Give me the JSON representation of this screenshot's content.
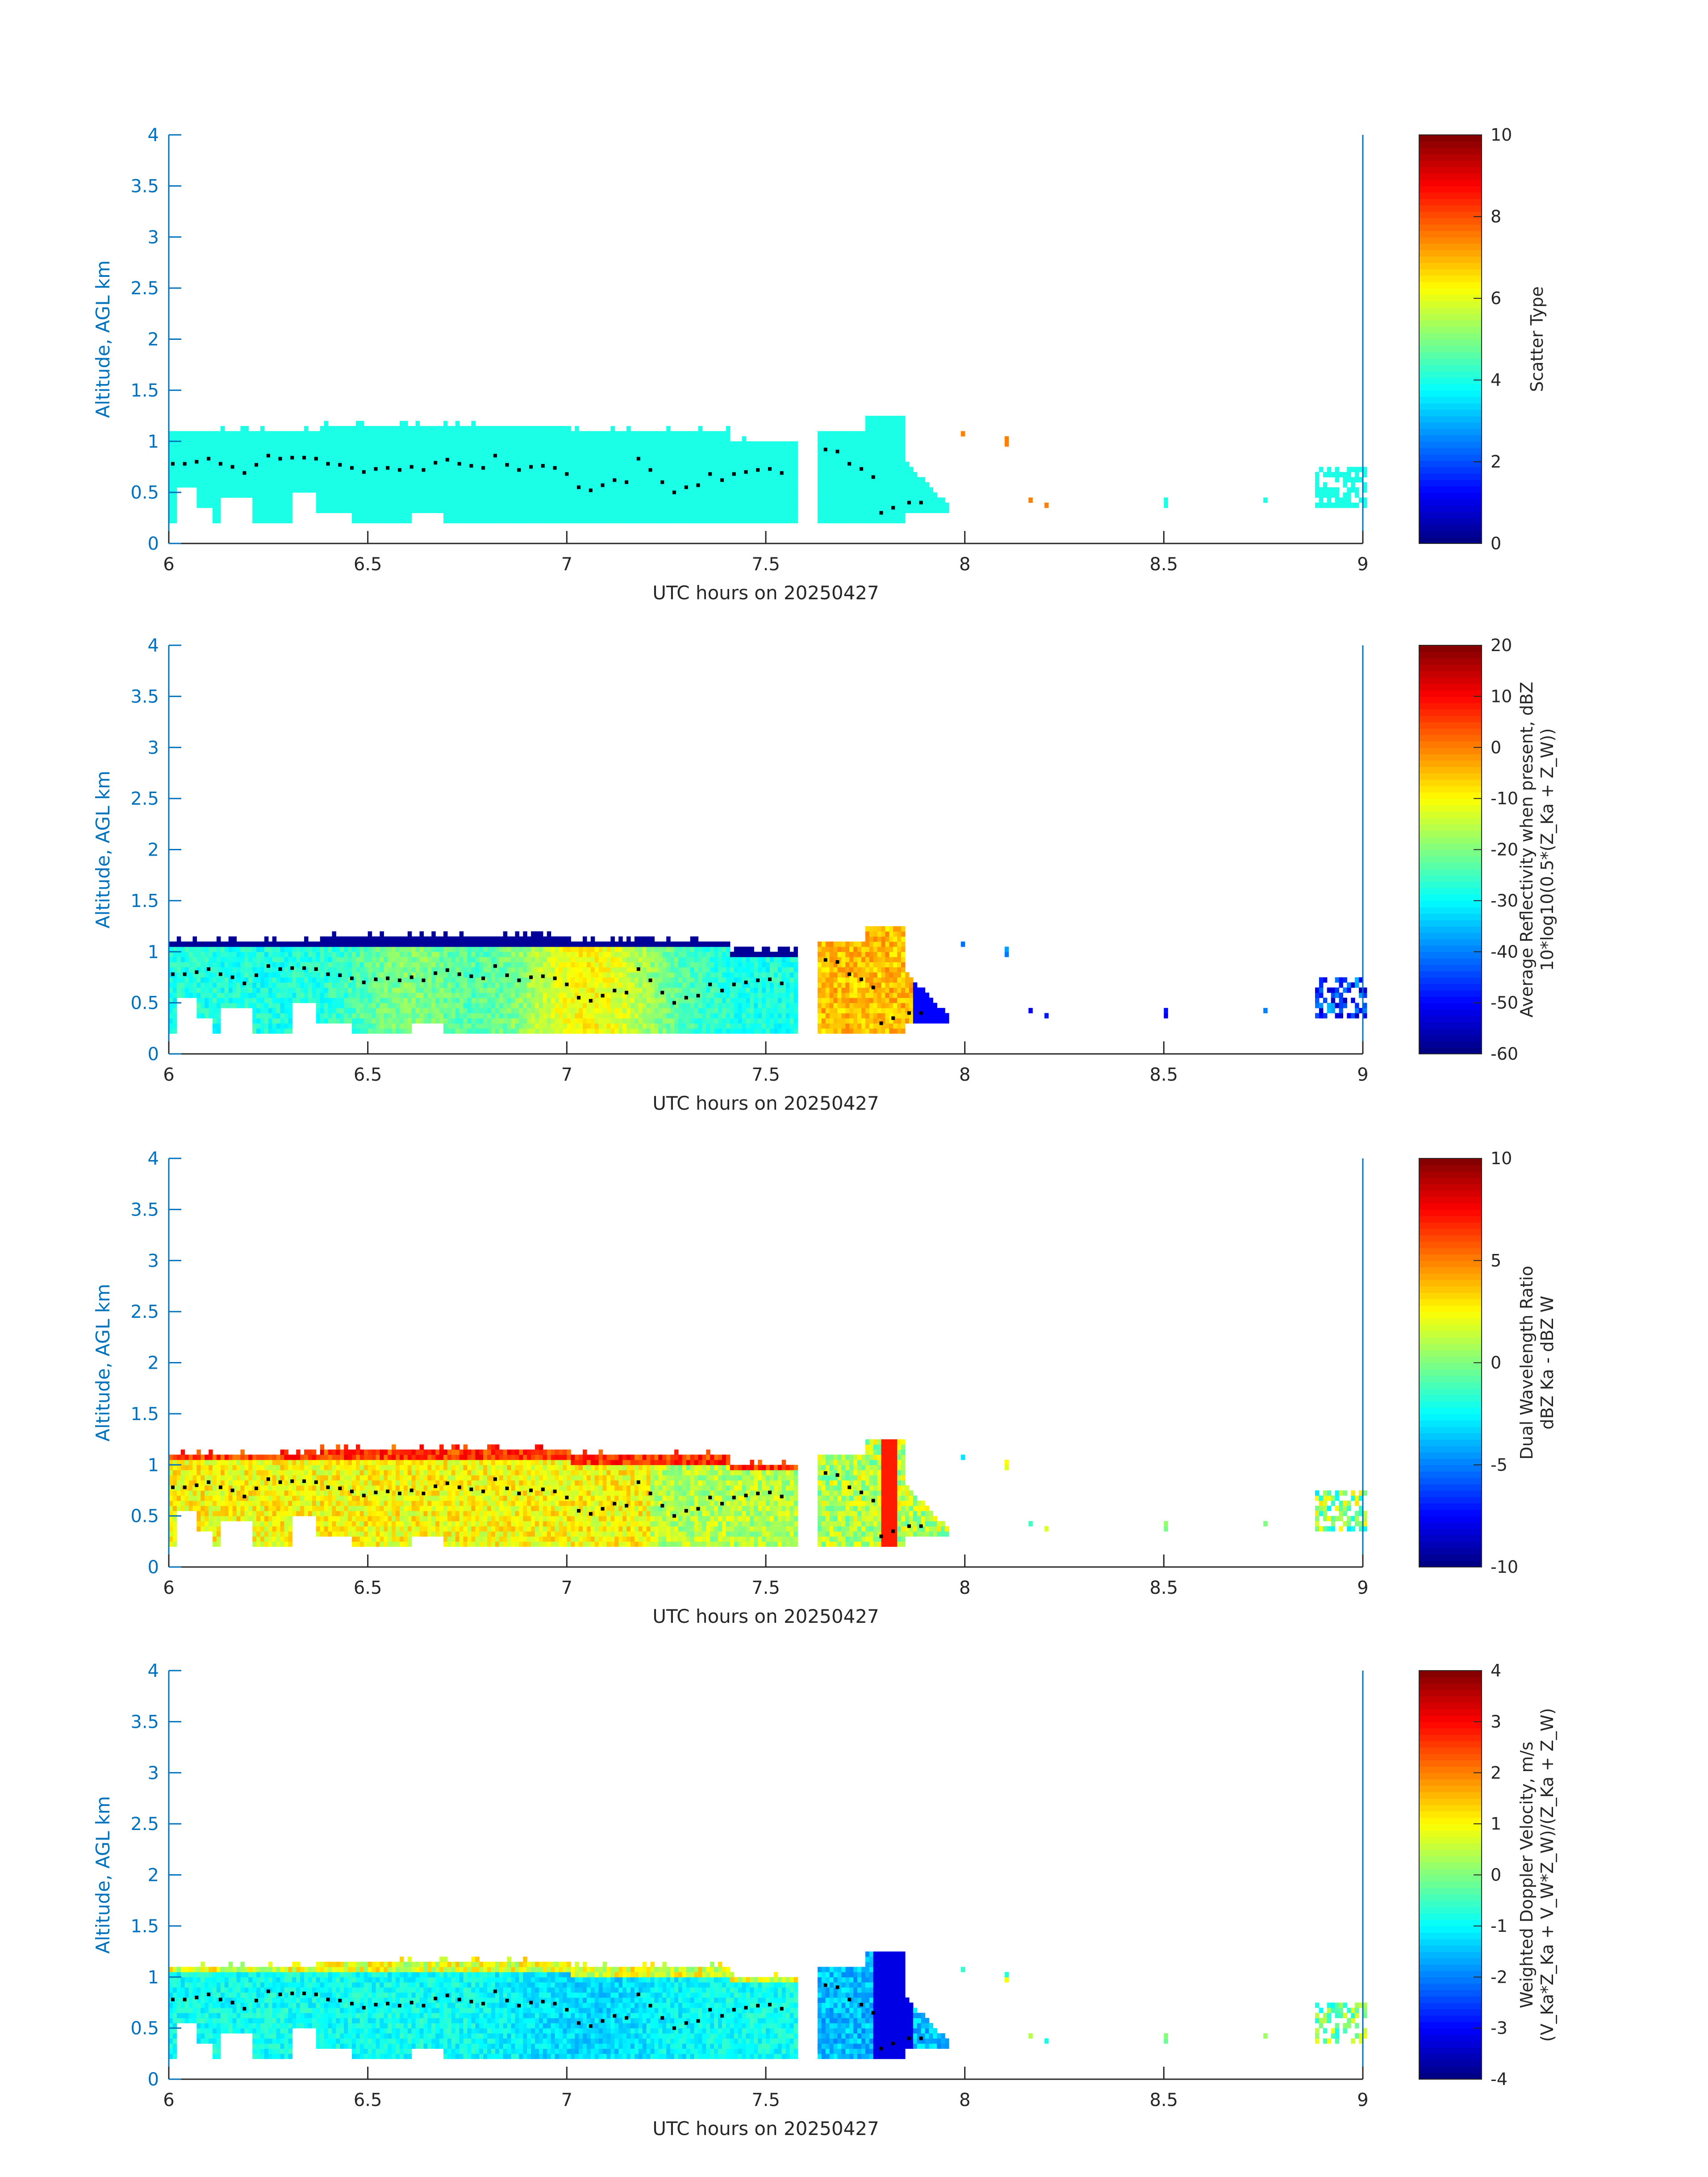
{
  "chart_data": [
    {
      "type": "heatmap",
      "xlabel": "UTC hours on 20250427",
      "ylabel": "Altitude, AGL km",
      "xlim": [
        6,
        9
      ],
      "ylim": [
        0,
        4
      ],
      "xticks": [
        "6",
        "6.5",
        "7",
        "7.5",
        "8",
        "8.5",
        "9"
      ],
      "yticks": [
        "0",
        "0.5",
        "1",
        "1.5",
        "2",
        "2.5",
        "3",
        "3.5",
        "4"
      ],
      "colorbar": {
        "label_lines": [
          "Scatter Type"
        ],
        "range": [
          0,
          10
        ],
        "ticks": [
          "0",
          "2",
          "4",
          "6",
          "8",
          "10"
        ]
      },
      "field": "scatter_type"
    },
    {
      "type": "heatmap",
      "xlabel": "UTC hours on 20250427",
      "ylabel": "Altitude, AGL km",
      "xlim": [
        6,
        9
      ],
      "ylim": [
        0,
        4
      ],
      "xticks": [
        "6",
        "6.5",
        "7",
        "7.5",
        "8",
        "8.5",
        "9"
      ],
      "yticks": [
        "0",
        "0.5",
        "1",
        "1.5",
        "2",
        "2.5",
        "3",
        "3.5",
        "4"
      ],
      "colorbar": {
        "label_lines": [
          "Average Reflectivity when present, dBZ",
          "10*log10(0.5*(Z_Ka + Z_W))"
        ],
        "range": [
          -60,
          20
        ],
        "ticks": [
          "-60",
          "-50",
          "-40",
          "-30",
          "-20",
          "-10",
          "0",
          "10",
          "20"
        ]
      },
      "field": "reflectivity"
    },
    {
      "type": "heatmap",
      "xlabel": "UTC hours on 20250427",
      "ylabel": "Altitude, AGL km",
      "xlim": [
        6,
        9
      ],
      "ylim": [
        0,
        4
      ],
      "xticks": [
        "6",
        "6.5",
        "7",
        "7.5",
        "8",
        "8.5",
        "9"
      ],
      "yticks": [
        "0",
        "0.5",
        "1",
        "1.5",
        "2",
        "2.5",
        "3",
        "3.5",
        "4"
      ],
      "colorbar": {
        "label_lines": [
          "Dual Wavelength Ratio",
          "dBZ Ka - dBZ W"
        ],
        "range": [
          -10,
          10
        ],
        "ticks": [
          "-10",
          "-5",
          "0",
          "5",
          "10"
        ]
      },
      "field": "dwr"
    },
    {
      "type": "heatmap",
      "xlabel": "UTC hours on 20250427",
      "ylabel": "Altitude, AGL km",
      "xlim": [
        6,
        9
      ],
      "ylim": [
        0,
        4
      ],
      "xticks": [
        "6",
        "6.5",
        "7",
        "7.5",
        "8",
        "8.5",
        "9"
      ],
      "yticks": [
        "0",
        "0.5",
        "1",
        "1.5",
        "2",
        "2.5",
        "3",
        "3.5",
        "4"
      ],
      "colorbar": {
        "label_lines": [
          "Weighted Doppler Velocity, m/s",
          "(V_Ka*Z_Ka + V_W*Z_W)/(Z_Ka + Z_W)"
        ],
        "range": [
          -4,
          4
        ],
        "ticks": [
          "-4",
          "-3",
          "-2",
          "-1",
          "0",
          "1",
          "2",
          "3",
          "4"
        ]
      },
      "field": "velocity"
    }
  ],
  "cloud_base_points": [
    [
      6.01,
      0.78
    ],
    [
      6.04,
      0.78
    ],
    [
      6.07,
      0.8
    ],
    [
      6.1,
      0.83
    ],
    [
      6.13,
      0.78
    ],
    [
      6.16,
      0.75
    ],
    [
      6.19,
      0.69
    ],
    [
      6.22,
      0.77
    ],
    [
      6.25,
      0.86
    ],
    [
      6.28,
      0.83
    ],
    [
      6.31,
      0.84
    ],
    [
      6.34,
      0.84
    ],
    [
      6.37,
      0.83
    ],
    [
      6.4,
      0.78
    ],
    [
      6.43,
      0.77
    ],
    [
      6.46,
      0.74
    ],
    [
      6.49,
      0.7
    ],
    [
      6.52,
      0.73
    ],
    [
      6.55,
      0.74
    ],
    [
      6.58,
      0.72
    ],
    [
      6.61,
      0.75
    ],
    [
      6.64,
      0.72
    ],
    [
      6.67,
      0.79
    ],
    [
      6.7,
      0.82
    ],
    [
      6.73,
      0.78
    ],
    [
      6.76,
      0.76
    ],
    [
      6.79,
      0.74
    ],
    [
      6.82,
      0.86
    ],
    [
      6.85,
      0.77
    ],
    [
      6.88,
      0.72
    ],
    [
      6.91,
      0.75
    ],
    [
      6.94,
      0.76
    ],
    [
      6.97,
      0.74
    ],
    [
      7.0,
      0.68
    ],
    [
      7.03,
      0.55
    ],
    [
      7.06,
      0.52
    ],
    [
      7.09,
      0.57
    ],
    [
      7.12,
      0.62
    ],
    [
      7.15,
      0.6
    ],
    [
      7.18,
      0.83
    ],
    [
      7.21,
      0.72
    ],
    [
      7.24,
      0.6
    ],
    [
      7.27,
      0.5
    ],
    [
      7.3,
      0.55
    ],
    [
      7.33,
      0.57
    ],
    [
      7.36,
      0.68
    ],
    [
      7.39,
      0.62
    ],
    [
      7.42,
      0.68
    ],
    [
      7.45,
      0.7
    ],
    [
      7.48,
      0.72
    ],
    [
      7.51,
      0.73
    ],
    [
      7.54,
      0.69
    ],
    [
      7.65,
      0.92
    ],
    [
      7.68,
      0.9
    ],
    [
      7.71,
      0.78
    ],
    [
      7.74,
      0.73
    ],
    [
      7.77,
      0.65
    ],
    [
      7.79,
      0.3
    ],
    [
      7.82,
      0.35
    ],
    [
      7.86,
      0.4
    ],
    [
      7.89,
      0.4
    ]
  ]
}
